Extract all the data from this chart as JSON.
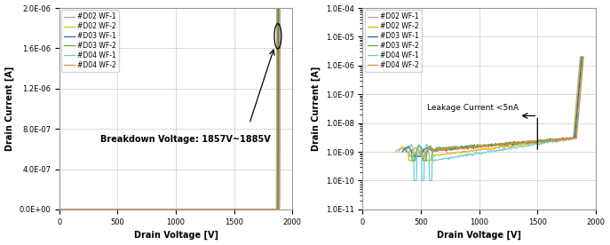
{
  "legend_labels": [
    "#D02 WF-1",
    "#D02 WF-2",
    "#D03 WF-1",
    "#D03 WF-2",
    "#D04 WF-1",
    "#D04 WF-2"
  ],
  "colors": [
    "#aaaaaa",
    "#ddbb00",
    "#3355bb",
    "#55aa44",
    "#66ccdd",
    "#ee8833"
  ],
  "left_xlim": [
    0,
    2000
  ],
  "left_ylim": [
    0,
    2e-06
  ],
  "left_ytick_vals": [
    0,
    4e-07,
    8e-07,
    1.2e-06,
    1.6e-06,
    2e-06
  ],
  "left_ytick_labels": [
    "0.0E+00",
    "4.0E-07",
    "8.0E-07",
    "1.2E-06",
    "1.6E-06",
    "2.0E-06"
  ],
  "left_xlabel": "Drain Voltage [V]",
  "left_ylabel": "Drain Current [A]",
  "right_xlim": [
    0,
    2000
  ],
  "right_ylim": [
    1e-11,
    0.0001
  ],
  "right_xlabel": "Drain Voltage [V]",
  "right_ylabel": "Drain Current [A]",
  "breakdown_text": "Breakdown Voltage: 1857V~1885V",
  "leakage_text": "Leakage Current <5nA",
  "breakdown_voltages": [
    1857,
    1863,
    1870,
    1878,
    1882,
    1885
  ],
  "figure_width": 6.87,
  "figure_height": 2.76,
  "dpi": 100
}
